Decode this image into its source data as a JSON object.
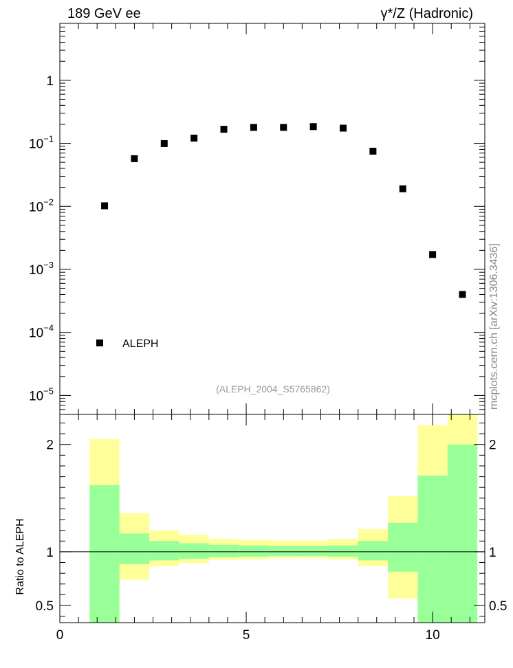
{
  "chart_data": [
    {
      "type": "scatter",
      "header_left": "189 GeV ee",
      "header_right": "γ*/Z (Hadronic)",
      "side_label": "mcplots.cern.ch [arXiv:1306.3436]",
      "watermark": "(ALEPH_2004_S5765862)",
      "yscale": "log",
      "xlim": [
        0,
        11.4
      ],
      "ylim": [
        5e-06,
        8
      ],
      "y_ticks": [
        {
          "value": 1,
          "base": "1",
          "exp": ""
        },
        {
          "value": 0.1,
          "base": "10",
          "exp": "−1"
        },
        {
          "value": 0.01,
          "base": "10",
          "exp": "−2"
        },
        {
          "value": 0.001,
          "base": "10",
          "exp": "−3"
        },
        {
          "value": 0.0001,
          "base": "10",
          "exp": "−4"
        },
        {
          "value": 1e-05,
          "base": "10",
          "exp": "−5"
        }
      ],
      "series": [
        {
          "name": "ALEPH",
          "marker": "square",
          "color": "#000000",
          "x": [
            1.2,
            2.0,
            2.8,
            3.6,
            4.4,
            5.2,
            6.0,
            6.8,
            7.6,
            8.4,
            9.2,
            10.0,
            10.8
          ],
          "y": [
            0.0102,
            0.057,
            0.099,
            0.121,
            0.167,
            0.179,
            0.179,
            0.184,
            0.174,
            0.075,
            0.019,
            0.00172,
            0.0004
          ]
        }
      ],
      "legend": "bottom-left"
    },
    {
      "type": "bar",
      "ylabel": "Ratio to ALEPH",
      "xlim": [
        0,
        11.4
      ],
      "ylim": [
        0.34,
        2.28
      ],
      "x_ticks": [
        0,
        5,
        10
      ],
      "y_ticks": [
        0.5,
        1,
        2
      ],
      "reference_line": 1,
      "bin_edges": [
        0.8,
        1.6,
        2.4,
        3.2,
        4.0,
        4.8,
        5.6,
        6.4,
        7.2,
        8.0,
        8.8,
        9.6,
        10.4,
        11.2
      ],
      "bands": [
        {
          "name": "stat",
          "color": "#99ff99",
          "lower": [
            0.34,
            0.885,
            0.92,
            0.935,
            0.95,
            0.955,
            0.96,
            0.96,
            0.955,
            0.92,
            0.815,
            0.34,
            0.34
          ],
          "upper": [
            1.62,
            1.17,
            1.1,
            1.08,
            1.065,
            1.06,
            1.055,
            1.055,
            1.06,
            1.1,
            1.27,
            1.71,
            2.0
          ]
        },
        {
          "name": "total",
          "color": "#ffff99",
          "lower": [
            0.43,
            0.74,
            0.865,
            0.895,
            0.925,
            0.93,
            0.94,
            0.94,
            0.93,
            0.865,
            0.565,
            0.34,
            0.34
          ],
          "upper": [
            2.05,
            1.36,
            1.2,
            1.16,
            1.12,
            1.11,
            1.105,
            1.105,
            1.12,
            1.21,
            1.52,
            2.18,
            2.3
          ]
        }
      ]
    }
  ]
}
